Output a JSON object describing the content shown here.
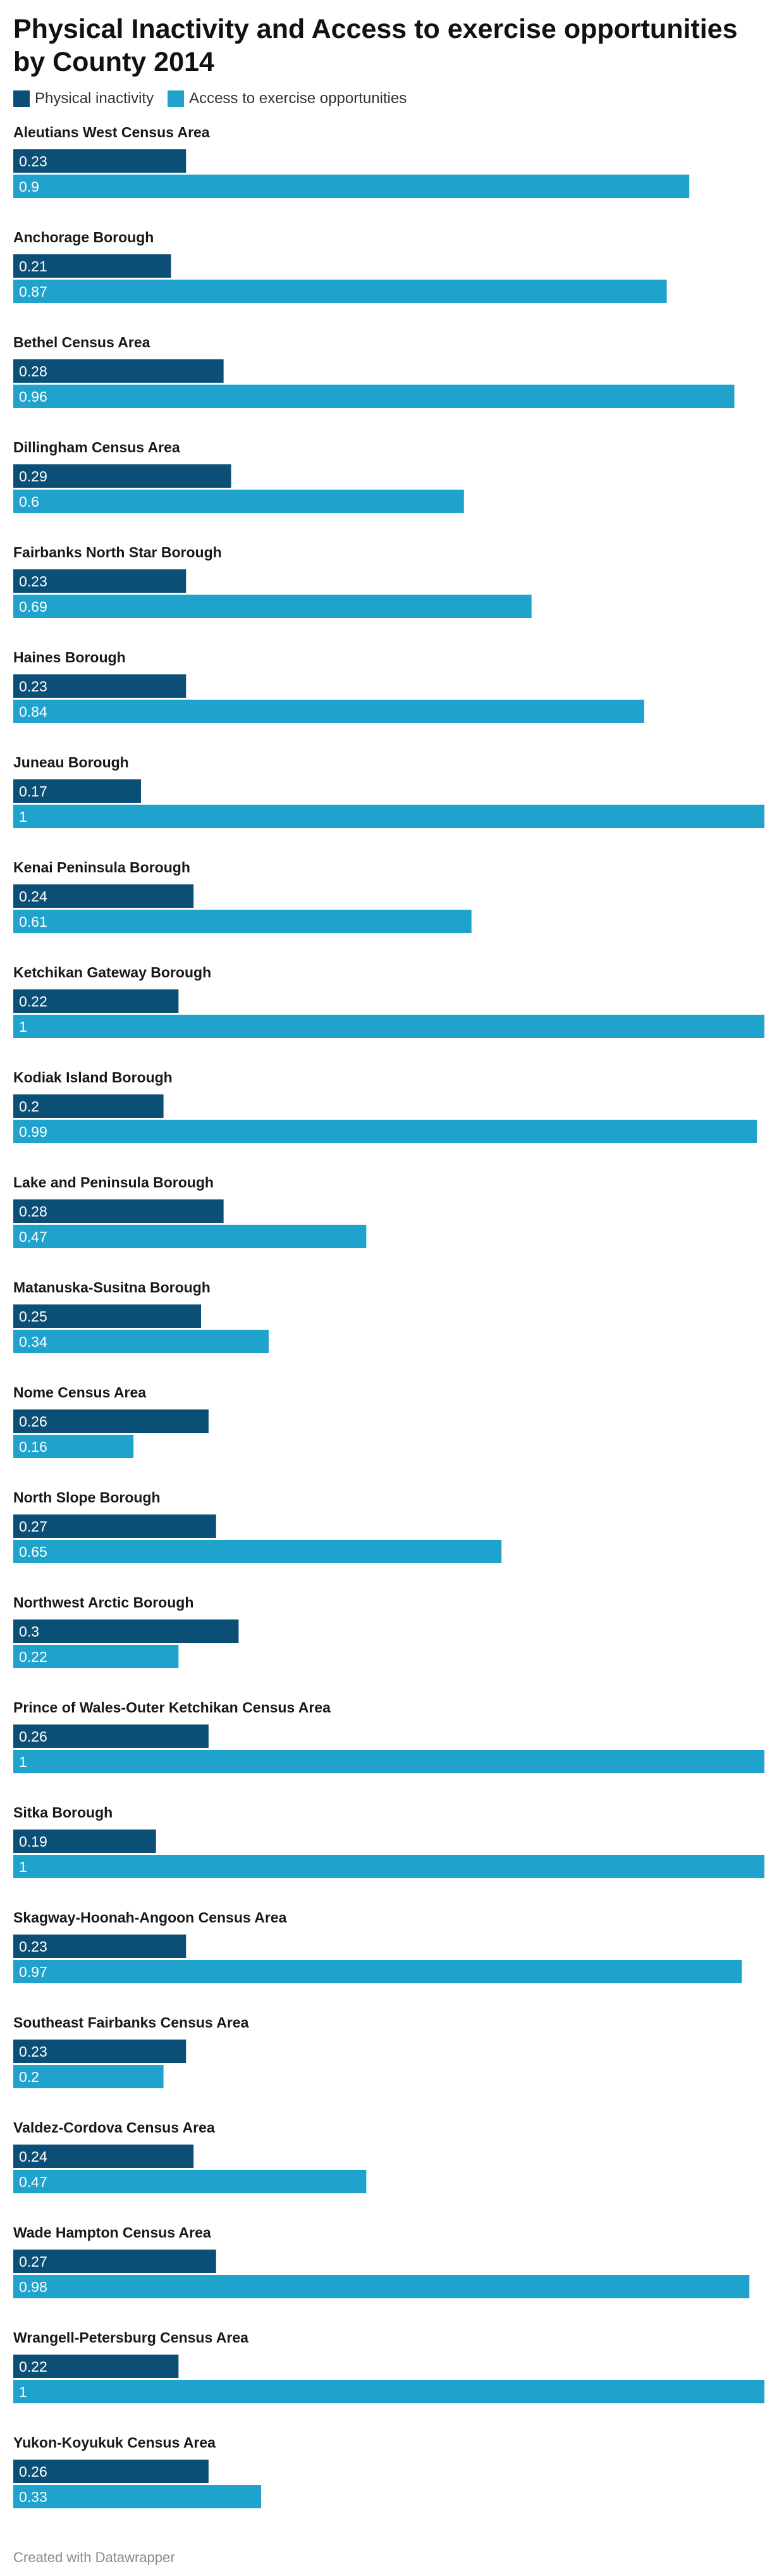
{
  "title": "Physical Inactivity and Access to exercise opportunities by County 2014",
  "footer": "Created with Datawrapper",
  "colors": {
    "physical_inactivity": "#0c4f76",
    "access_to_exercise": "#1fa3cd"
  },
  "chart_data": {
    "type": "bar",
    "orientation": "horizontal",
    "title": "Physical Inactivity and Access to exercise opportunities by County 2014",
    "legend": [
      "Physical inactivity",
      "Access to exercise opportunities"
    ],
    "legend_position": "top-left",
    "xlim": [
      0,
      1
    ],
    "grid": false,
    "categories": [
      "Aleutians West Census Area",
      "Anchorage Borough",
      "Bethel Census Area",
      "Dillingham Census Area",
      "Fairbanks North Star Borough",
      "Haines Borough",
      "Juneau Borough",
      "Kenai Peninsula Borough",
      "Ketchikan Gateway Borough",
      "Kodiak Island Borough",
      "Lake and Peninsula Borough",
      "Matanuska-Susitna Borough",
      "Nome Census Area",
      "North Slope Borough",
      "Northwest Arctic Borough",
      "Prince of Wales-Outer Ketchikan Census Area",
      "Sitka Borough",
      "Skagway-Hoonah-Angoon Census Area",
      "Southeast Fairbanks Census Area",
      "Valdez-Cordova Census Area",
      "Wade Hampton Census Area",
      "Wrangell-Petersburg Census Area",
      "Yukon-Koyukuk Census Area"
    ],
    "series": [
      {
        "name": "Physical inactivity",
        "values": [
          0.23,
          0.21,
          0.28,
          0.29,
          0.23,
          0.23,
          0.17,
          0.24,
          0.22,
          0.2,
          0.28,
          0.25,
          0.26,
          0.27,
          0.3,
          0.26,
          0.19,
          0.23,
          0.23,
          0.24,
          0.27,
          0.22,
          0.26
        ],
        "labels": [
          "0.23",
          "0.21",
          "0.28",
          "0.29",
          "0.23",
          "0.23",
          "0.17",
          "0.24",
          "0.22",
          "0.2",
          "0.28",
          "0.25",
          "0.26",
          "0.27",
          "0.3",
          "0.26",
          "0.19",
          "0.23",
          "0.23",
          "0.24",
          "0.27",
          "0.22",
          "0.26"
        ]
      },
      {
        "name": "Access to exercise opportunities",
        "values": [
          0.9,
          0.87,
          0.96,
          0.6,
          0.69,
          0.84,
          1,
          0.61,
          1,
          0.99,
          0.47,
          0.34,
          0.16,
          0.65,
          0.22,
          1,
          1,
          0.97,
          0.2,
          0.47,
          0.98,
          1,
          0.33
        ],
        "labels": [
          "0.9",
          "0.87",
          "0.96",
          "0.6",
          "0.69",
          "0.84",
          "1",
          "0.61",
          "1",
          "0.99",
          "0.47",
          "0.34",
          "0.16",
          "0.65",
          "0.22",
          "1",
          "1",
          "0.97",
          "0.2",
          "0.47",
          "0.98",
          "1",
          "0.33"
        ]
      }
    ]
  }
}
